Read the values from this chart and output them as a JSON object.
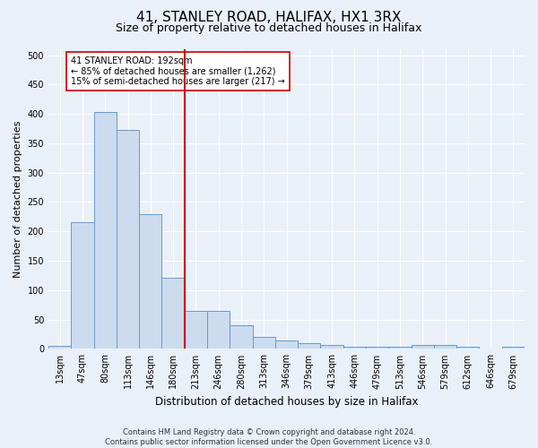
{
  "title": "41, STANLEY ROAD, HALIFAX, HX1 3RX",
  "subtitle": "Size of property relative to detached houses in Halifax",
  "xlabel": "Distribution of detached houses by size in Halifax",
  "ylabel": "Number of detached properties",
  "categories": [
    "13sqm",
    "47sqm",
    "80sqm",
    "113sqm",
    "146sqm",
    "180sqm",
    "213sqm",
    "246sqm",
    "280sqm",
    "313sqm",
    "346sqm",
    "379sqm",
    "413sqm",
    "446sqm",
    "479sqm",
    "513sqm",
    "546sqm",
    "579sqm",
    "612sqm",
    "646sqm",
    "679sqm"
  ],
  "values": [
    5,
    215,
    403,
    372,
    229,
    121,
    65,
    65,
    40,
    20,
    15,
    10,
    6,
    3,
    3,
    3,
    7,
    7,
    3,
    1,
    4
  ],
  "bar_color": "#ccdcee",
  "bar_edge_color": "#6699cc",
  "marker_bar_index": 5,
  "marker_line_color": "#cc0000",
  "annotation_text": "41 STANLEY ROAD: 192sqm\n← 85% of detached houses are smaller (1,262)\n15% of semi-detached houses are larger (217) →",
  "annotation_box_color": "white",
  "annotation_box_edge": "#cc0000",
  "footer": "Contains HM Land Registry data © Crown copyright and database right 2024.\nContains public sector information licensed under the Open Government Licence v3.0.",
  "ylim": [
    0,
    510
  ],
  "bg_color": "#eaf0f8",
  "grid_color": "#ffffff",
  "title_fontsize": 11,
  "subtitle_fontsize": 9,
  "ylabel_fontsize": 8,
  "xlabel_fontsize": 8.5,
  "tick_fontsize": 7,
  "annotation_fontsize": 7,
  "footer_fontsize": 6
}
